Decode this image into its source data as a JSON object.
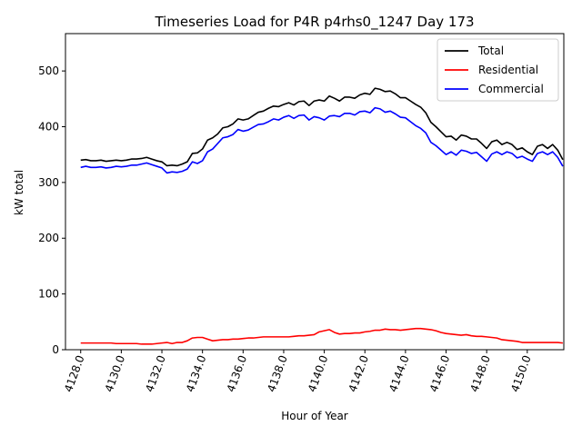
{
  "chart_data": {
    "type": "line",
    "title": "Timeseries Load for P4R p4rhs0_1247  Day 173",
    "xlabel": "Hour of Year",
    "ylabel": "kW total",
    "xlim": [
      4127.25,
      4151.8
    ],
    "ylim": [
      0,
      567
    ],
    "x_ticks": [
      4128,
      4130,
      4132,
      4134,
      4136,
      4138,
      4140,
      4142,
      4144,
      4146,
      4148,
      4150
    ],
    "x_tick_labels": [
      "4128.0",
      "4130.0",
      "4132.0",
      "4134.0",
      "4136.0",
      "4138.0",
      "4140.0",
      "4142.0",
      "4144.0",
      "4146.0",
      "4148.0",
      "4150.0"
    ],
    "y_ticks": [
      0,
      100,
      200,
      300,
      400,
      500
    ],
    "y_tick_labels": [
      "0",
      "100",
      "200",
      "300",
      "400",
      "500"
    ],
    "grid": false,
    "legend_position": "top-right",
    "x_start": 4128.0,
    "x_step": 0.25,
    "series": [
      {
        "name": "Total",
        "color": "#000000",
        "values": [
          340,
          341,
          339,
          339,
          340,
          338,
          339,
          340,
          339,
          340,
          342,
          342,
          343,
          345,
          342,
          339,
          337,
          330,
          331,
          330,
          333,
          337,
          352,
          353,
          360,
          376,
          380,
          387,
          398,
          400,
          405,
          414,
          412,
          414,
          420,
          426,
          428,
          433,
          437,
          436,
          440,
          443,
          439,
          445,
          446,
          438,
          446,
          448,
          446,
          455,
          451,
          446,
          453,
          453,
          451,
          457,
          460,
          458,
          469,
          467,
          463,
          464,
          459,
          452,
          452,
          446,
          440,
          435,
          425,
          408,
          400,
          391,
          382,
          383,
          376,
          385,
          383,
          378,
          378,
          370,
          361,
          373,
          376,
          368,
          372,
          368,
          359,
          362,
          355,
          350,
          365,
          368,
          361,
          368,
          358,
          341
        ]
      },
      {
        "name": "Residential",
        "color": "#ff0000",
        "values": [
          12,
          12,
          12,
          12,
          12,
          12,
          12,
          11,
          11,
          11,
          11,
          11,
          10,
          10,
          10,
          11,
          12,
          13,
          11,
          13,
          13,
          16,
          21,
          22,
          22,
          19,
          16,
          17,
          18,
          18,
          19,
          19,
          20,
          21,
          21,
          22,
          23,
          23,
          23,
          23,
          23,
          23,
          24,
          25,
          25,
          26,
          27,
          32,
          34,
          36,
          31,
          28,
          29,
          29,
          30,
          30,
          32,
          33,
          35,
          35,
          37,
          36,
          36,
          35,
          36,
          37,
          38,
          38,
          37,
          36,
          34,
          31,
          29,
          28,
          27,
          26,
          27,
          25,
          24,
          24,
          23,
          22,
          21,
          18,
          17,
          16,
          15,
          13,
          13,
          13,
          13,
          13,
          13,
          13,
          13,
          12
        ]
      },
      {
        "name": "Commercial",
        "color": "#0000ff",
        "values": [
          327,
          329,
          327,
          327,
          328,
          326,
          327,
          329,
          328,
          329,
          331,
          331,
          333,
          335,
          332,
          329,
          326,
          317,
          319,
          318,
          320,
          324,
          337,
          334,
          339,
          355,
          360,
          370,
          380,
          382,
          386,
          395,
          392,
          394,
          399,
          404,
          405,
          409,
          414,
          412,
          417,
          420,
          415,
          420,
          421,
          412,
          418,
          416,
          412,
          419,
          420,
          418,
          424,
          424,
          421,
          427,
          428,
          425,
          434,
          432,
          426,
          428,
          423,
          417,
          416,
          409,
          402,
          397,
          389,
          372,
          366,
          358,
          350,
          355,
          349,
          358,
          356,
          352,
          354,
          346,
          338,
          351,
          355,
          350,
          355,
          352,
          344,
          347,
          342,
          338,
          352,
          355,
          350,
          355,
          345,
          329
        ]
      }
    ]
  }
}
